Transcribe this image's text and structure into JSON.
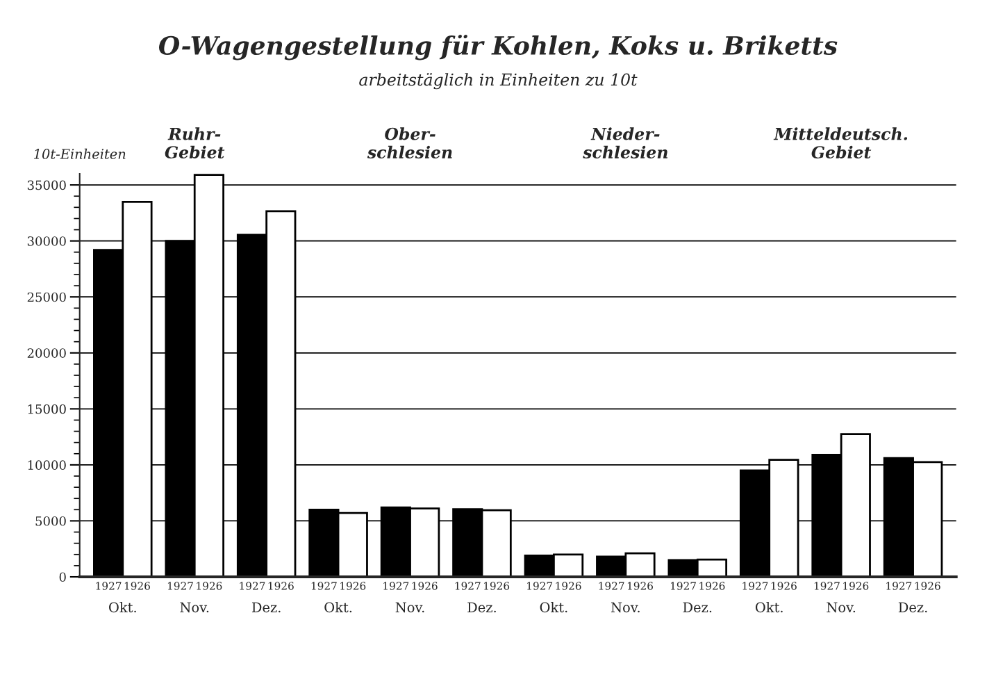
{
  "chart_data": {
    "type": "bar",
    "title": "O-Wagengestellung für Kohlen, Koks u. Briketts",
    "subtitle": "arbeitstäglich in Einheiten zu 10t",
    "ylabel": "10t-Einheiten",
    "categories": [
      "Okt.",
      "Nov.",
      "Dez.",
      "Okt.",
      "Nov.",
      "Dez.",
      "Okt.",
      "Nov.",
      "Dez.",
      "Okt.",
      "Nov.",
      "Dez."
    ],
    "series": [
      {
        "name": "1927",
        "color": "#000000",
        "values": [
          29200,
          30000,
          30550,
          6000,
          6200,
          6050,
          1900,
          1800,
          1500,
          9500,
          10900,
          10600
        ]
      },
      {
        "name": "1926",
        "color": "#ffffff",
        "values": [
          33500,
          35900,
          32650,
          5700,
          6100,
          5950,
          2000,
          2100,
          1550,
          10450,
          12750,
          10250
        ]
      }
    ],
    "annotations": [
      "Ruhr-\nGebiet",
      "Ober-\nschlesien",
      "Nieder-\nschlesien",
      "Mitteldeutsch.\nGebiet"
    ],
    "ylim": [
      0,
      36000
    ],
    "yticks": [
      0,
      {
        "value": 1000,
        "label": null
      },
      {
        "value": 2000,
        "label": null
      },
      {
        "value": 3000,
        "label": null
      },
      {
        "value": 4000,
        "label": null
      },
      5000,
      {
        "value": 6000,
        "label": null
      },
      {
        "value": 7000,
        "label": null
      },
      {
        "value": 8000,
        "label": null
      },
      {
        "value": 9000,
        "label": null
      },
      10000,
      {
        "value": 11000,
        "label": null
      },
      {
        "value": 12000,
        "label": null
      },
      {
        "value": 13000,
        "label": null
      },
      {
        "value": 14000,
        "label": null
      },
      15000,
      {
        "value": 16000,
        "label": null
      },
      {
        "value": 17000,
        "label": null
      },
      {
        "value": 18000,
        "label": null
      },
      {
        "value": 19000,
        "label": null
      },
      20000,
      {
        "value": 21000,
        "label": null
      },
      {
        "value": 22000,
        "label": null
      },
      {
        "value": 23000,
        "label": null
      },
      {
        "value": 24000,
        "label": null
      },
      25000,
      {
        "value": 26000,
        "label": null
      },
      {
        "value": 27000,
        "label": null
      },
      {
        "value": 28000,
        "label": null
      },
      {
        "value": 29000,
        "label": null
      },
      30000,
      {
        "value": 31000,
        "label": null
      },
      {
        "value": 32000,
        "label": null
      },
      {
        "value": 33000,
        "label": null
      },
      {
        "value": 34000,
        "label": null
      },
      35000
    ],
    "grid": "y",
    "legend": false
  }
}
